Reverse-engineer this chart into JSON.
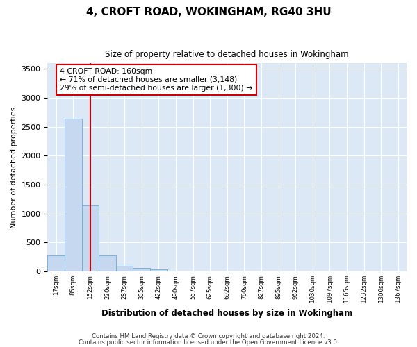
{
  "title": "4, CROFT ROAD, WOKINGHAM, RG40 3HU",
  "subtitle": "Size of property relative to detached houses in Wokingham",
  "xlabel": "Distribution of detached houses by size in Wokingham",
  "ylabel": "Number of detached properties",
  "bar_values": [
    270,
    2640,
    1140,
    270,
    100,
    60,
    40,
    0,
    0,
    0,
    0,
    0,
    0,
    0,
    0,
    0,
    0,
    0,
    0,
    0
  ],
  "categories": [
    "17sqm",
    "85sqm",
    "152sqm",
    "220sqm",
    "287sqm",
    "355sqm",
    "422sqm",
    "490sqm",
    "557sqm",
    "625sqm",
    "692sqm",
    "760sqm",
    "827sqm",
    "895sqm",
    "962sqm",
    "1030sqm",
    "1097sqm",
    "1165sqm",
    "1232sqm",
    "1300sqm",
    "1367sqm"
  ],
  "bar_color": "#c5d8ef",
  "bar_edge_color": "#6aaad4",
  "background_color": "#ffffff",
  "plot_bg_color": "#dce8f5",
  "grid_color": "#ffffff",
  "vline_color": "#cc0000",
  "annotation_text": "4 CROFT ROAD: 160sqm\n← 71% of detached houses are smaller (3,148)\n29% of semi-detached houses are larger (1,300) →",
  "annotation_box_color": "#ffffff",
  "annotation_box_edge_color": "#cc0000",
  "ylim": [
    0,
    3600
  ],
  "yticks": [
    0,
    500,
    1000,
    1500,
    2000,
    2500,
    3000,
    3500
  ],
  "footer1": "Contains HM Land Registry data © Crown copyright and database right 2024.",
  "footer2": "Contains public sector information licensed under the Open Government Licence v3.0."
}
